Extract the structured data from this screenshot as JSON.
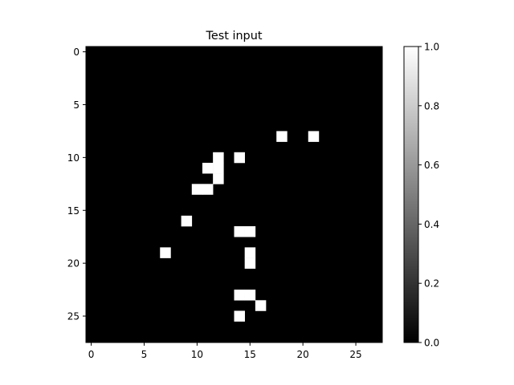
{
  "chart_data": {
    "type": "heatmap",
    "title": "Test input",
    "xlabel": "",
    "ylabel": "",
    "grid": false,
    "colormap": "gray",
    "rows": 28,
    "cols": 28,
    "xlim": [
      -0.5,
      27.5
    ],
    "ylim": [
      27.5,
      -0.5
    ],
    "x_ticks": [
      0,
      5,
      10,
      15,
      20,
      25
    ],
    "y_ticks": [
      0,
      5,
      10,
      15,
      20,
      25
    ],
    "background_value": 0.0,
    "nonzero_cells": [
      {
        "row": 8,
        "col": 18,
        "value": 1.0
      },
      {
        "row": 8,
        "col": 21,
        "value": 1.0
      },
      {
        "row": 10,
        "col": 12,
        "value": 1.0
      },
      {
        "row": 10,
        "col": 14,
        "value": 1.0
      },
      {
        "row": 11,
        "col": 11,
        "value": 1.0
      },
      {
        "row": 11,
        "col": 12,
        "value": 1.0
      },
      {
        "row": 12,
        "col": 12,
        "value": 1.0
      },
      {
        "row": 13,
        "col": 10,
        "value": 1.0
      },
      {
        "row": 13,
        "col": 11,
        "value": 1.0
      },
      {
        "row": 16,
        "col": 9,
        "value": 1.0
      },
      {
        "row": 17,
        "col": 14,
        "value": 1.0
      },
      {
        "row": 17,
        "col": 15,
        "value": 1.0
      },
      {
        "row": 19,
        "col": 7,
        "value": 1.0
      },
      {
        "row": 19,
        "col": 15,
        "value": 1.0
      },
      {
        "row": 20,
        "col": 15,
        "value": 1.0
      },
      {
        "row": 23,
        "col": 14,
        "value": 1.0
      },
      {
        "row": 23,
        "col": 15,
        "value": 1.0
      },
      {
        "row": 24,
        "col": 16,
        "value": 1.0
      },
      {
        "row": 25,
        "col": 14,
        "value": 1.0
      }
    ],
    "colorbar": {
      "range": [
        0.0,
        1.0
      ],
      "ticks": [
        0.0,
        0.2,
        0.4,
        0.6,
        0.8,
        1.0
      ],
      "tick_labels": [
        "0.0",
        "0.2",
        "0.4",
        "0.6",
        "0.8",
        "1.0"
      ],
      "low_color": "#000000",
      "high_color": "#ffffff"
    }
  }
}
